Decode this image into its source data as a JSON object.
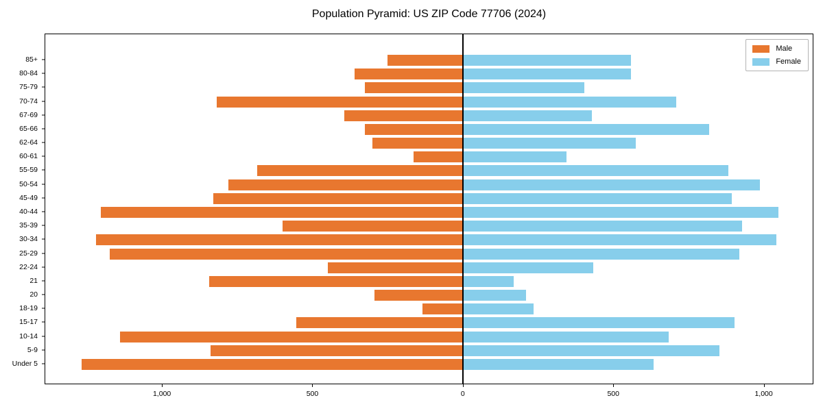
{
  "window": {
    "title": "Population Pyramid: US ZIP Code 77706 (2024)"
  },
  "chart_data": {
    "type": "bar",
    "orientation": "horizontal",
    "title": "Population Pyramid: US ZIP Code 77706 (2024)",
    "categories": [
      "85+",
      "80-84",
      "75-79",
      "70-74",
      "67-69",
      "65-66",
      "62-64",
      "60-61",
      "55-59",
      "50-54",
      "45-49",
      "40-44",
      "35-39",
      "30-34",
      "25-29",
      "22-24",
      "21",
      "20",
      "18-19",
      "15-17",
      "10-14",
      "5-9",
      "Under 5"
    ],
    "series": [
      {
        "name": "Male",
        "color": "#E8772F",
        "side": "left",
        "values": [
          250,
          360,
          325,
          820,
          395,
          325,
          300,
          165,
          685,
          780,
          830,
          1205,
          600,
          1220,
          1175,
          450,
          845,
          295,
          135,
          555,
          1140,
          840,
          1270
        ]
      },
      {
        "name": "Female",
        "color": "#87CEEB",
        "side": "right",
        "values": [
          560,
          560,
          405,
          710,
          430,
          820,
          575,
          345,
          885,
          990,
          895,
          1050,
          930,
          1045,
          920,
          435,
          170,
          210,
          235,
          905,
          685,
          855,
          635
        ]
      }
    ],
    "x_axis": {
      "tick_values": [
        -1000,
        -500,
        0,
        500,
        1000
      ],
      "tick_labels": [
        "1,000",
        "500",
        "0",
        "500",
        "1,000"
      ],
      "xlim": [
        -1390,
        1165
      ]
    },
    "y_axis": {
      "label": "",
      "categories_top_to_bottom": true
    },
    "legend": {
      "position": "upper right",
      "entries": [
        "Male",
        "Female"
      ]
    },
    "grid": false,
    "xlabel": "",
    "ylabel": ""
  }
}
